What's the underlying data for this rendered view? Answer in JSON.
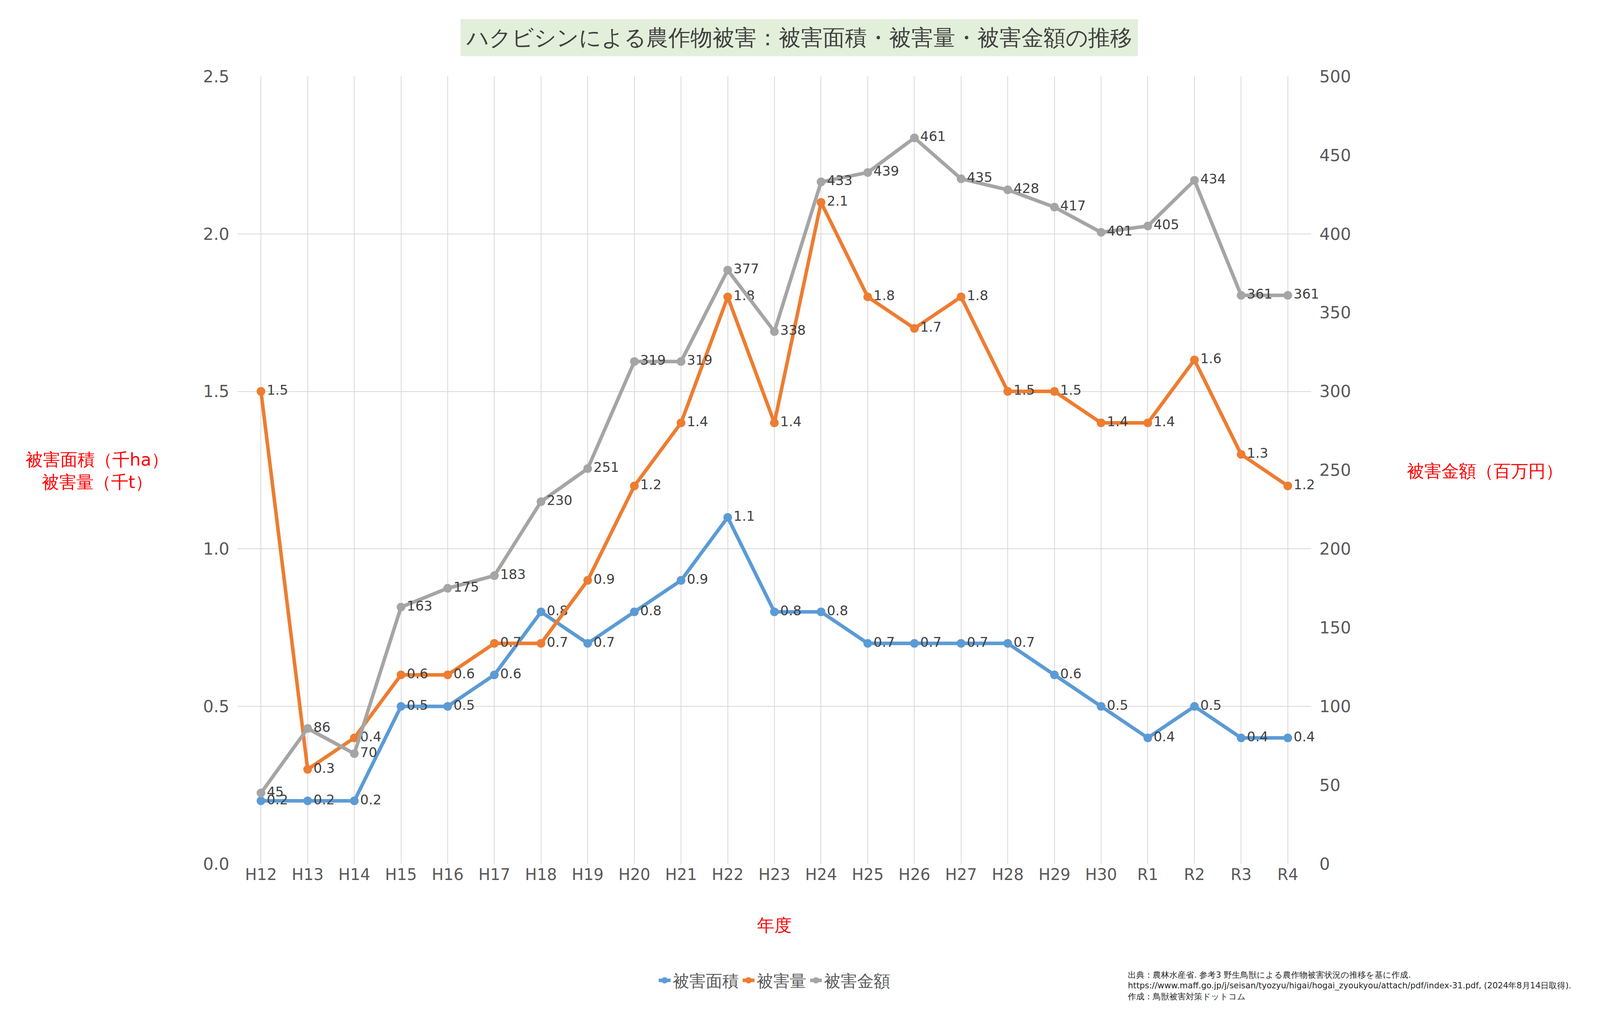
{
  "chart_data": {
    "type": "line",
    "title": "ハクビシンによる農作物被害：被害面積・被害量・被害金額の推移",
    "x_label": "年度",
    "y_label": "被害面積（千ha）\n被害量（千t）",
    "y2_label": "被害金額（百万円）",
    "categories": [
      "H12",
      "H13",
      "H14",
      "H15",
      "H16",
      "H17",
      "H18",
      "H19",
      "H20",
      "H21",
      "H22",
      "H23",
      "H24",
      "H25",
      "H26",
      "H27",
      "H28",
      "H29",
      "H30",
      "R1",
      "R2",
      "R3",
      "R4"
    ],
    "series": [
      {
        "name": "被害面積",
        "color": "#5b9bd5",
        "marker": "circle",
        "axis": "y",
        "values": [
          0.2,
          0.2,
          0.2,
          0.5,
          0.5,
          0.6,
          0.8,
          0.7,
          0.8,
          0.9,
          1.1,
          0.8,
          0.8,
          0.7,
          0.7,
          0.7,
          0.7,
          0.6,
          0.5,
          0.4,
          0.5,
          0.4,
          0.4
        ]
      },
      {
        "name": "被害量",
        "color": "#ed7d31",
        "marker": "circle",
        "axis": "y",
        "values": [
          1.5,
          0.3,
          0.4,
          0.6,
          0.6,
          0.7,
          0.7,
          0.9,
          1.2,
          1.4,
          1.8,
          1.4,
          2.1,
          1.8,
          1.7,
          1.8,
          1.5,
          1.5,
          1.4,
          1.4,
          1.6,
          1.3,
          1.2
        ]
      },
      {
        "name": "被害金額",
        "color": "#a5a5a5",
        "marker": "circle",
        "axis": "y2",
        "values": [
          45,
          86,
          70,
          163,
          175,
          183,
          230,
          251,
          319,
          319,
          377,
          338,
          433,
          439,
          461,
          435,
          428,
          417,
          401,
          405,
          434,
          361,
          361
        ]
      }
    ],
    "ylim": [
      0,
      2.5
    ],
    "yticks": [
      {
        "value": 0,
        "label": "0.0"
      },
      0.5,
      {
        "value": 1,
        "label": "1.0"
      },
      1.5,
      {
        "value": 2,
        "label": "2.0"
      },
      2.5
    ],
    "y2lim": [
      0,
      500
    ],
    "y2ticks": [
      0,
      50,
      100,
      150,
      200,
      250,
      300,
      350,
      400,
      450,
      500
    ],
    "grid": true,
    "legend": "bottom",
    "data_labels": true,
    "annotations": [
      "出典：農林水産省. 参考3 野生鳥獣による農作物被害状況の推移を基に作成.",
      "https://www.maff.go.jp/j/seisan/tyozyu/higai/hogai_zyoukyou/attach/pdf/index-31.pdf, (2024年8月14日取得).",
      "作成：鳥獣被害対策ドットコム"
    ]
  }
}
